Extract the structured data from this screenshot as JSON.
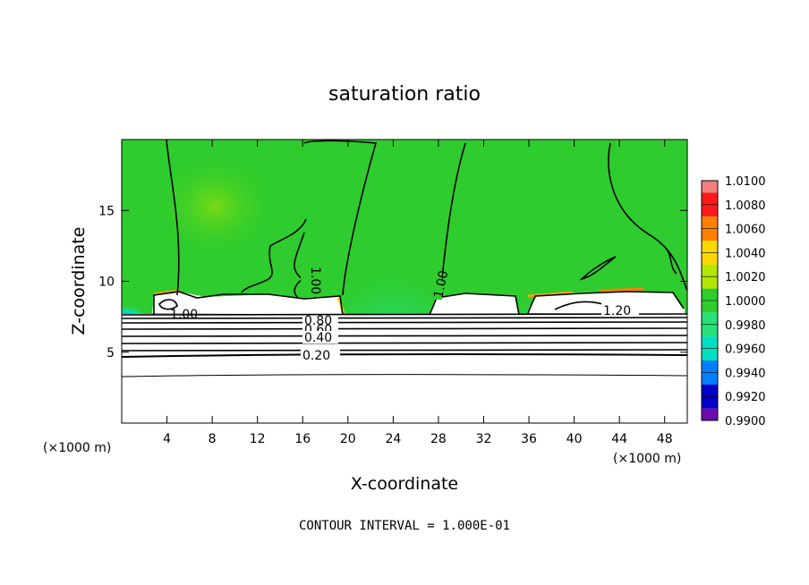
{
  "chart_data": {
    "type": "heatmap",
    "title": "saturation ratio",
    "xlabel": "X-coordinate",
    "ylabel": "Z-coordinate",
    "x_unit_left": "(×1000 m)",
    "x_unit_right": "(×1000 m)",
    "xlim": [
      0,
      50
    ],
    "ylim": [
      0,
      20
    ],
    "xticks": [
      4,
      8,
      12,
      16,
      20,
      24,
      28,
      32,
      36,
      40,
      44,
      48
    ],
    "yticks": [
      5,
      10,
      15
    ],
    "colorbar": {
      "levels": [
        "1.0100",
        "1.0080",
        "1.0060",
        "1.0040",
        "1.0020",
        "1.0000",
        "0.9980",
        "0.9960",
        "0.9940",
        "0.9920",
        "0.9900"
      ],
      "colors": [
        "#f08080",
        "#ff1a1a",
        "#ff7f00",
        "#ffd700",
        "#b4e600",
        "#2ecc2e",
        "#28e07a",
        "#00e0c0",
        "#0080ff",
        "#0000c8",
        "#6a0dad"
      ]
    },
    "contour_labels": [
      "1.00",
      "1.00",
      "1.00",
      "1.20",
      "0.80",
      "0.60",
      "0.40",
      "0.20"
    ],
    "contour_interval_note": "CONTOUR INTERVAL = 1.000E-01"
  }
}
